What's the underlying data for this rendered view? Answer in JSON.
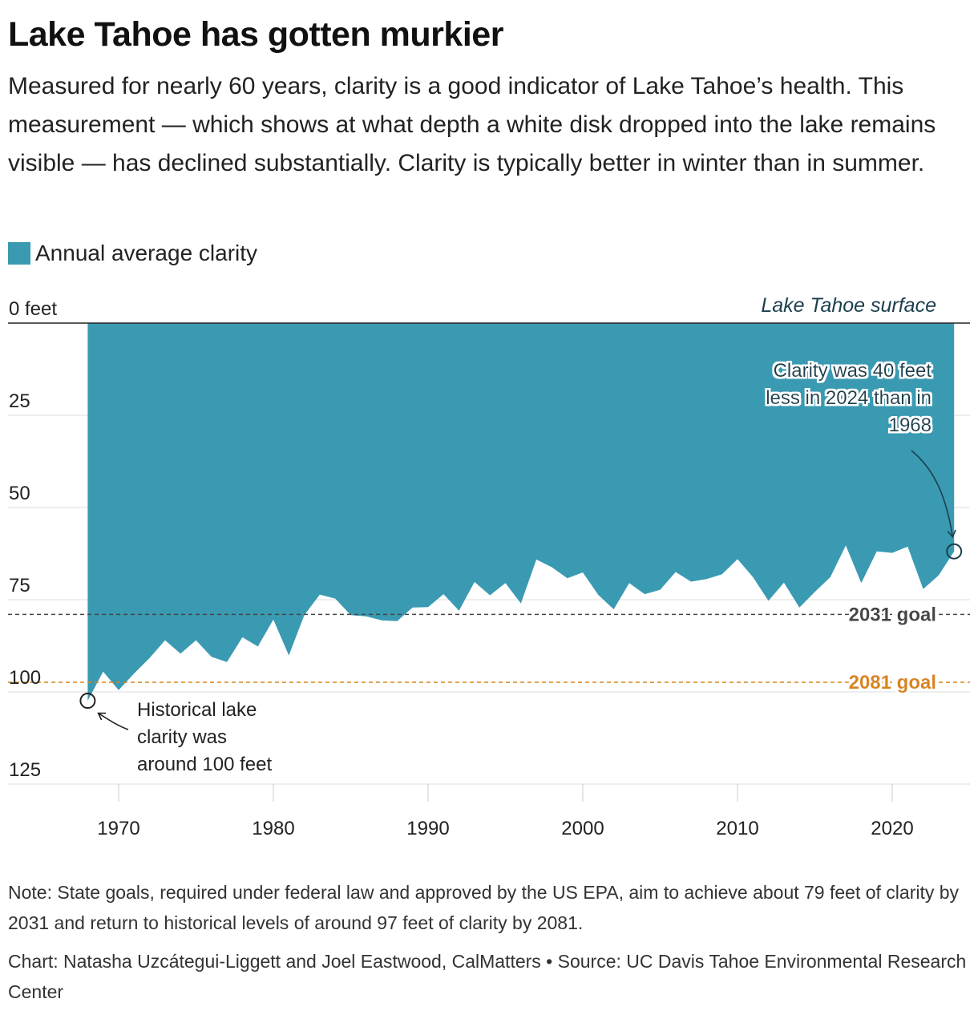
{
  "header": {
    "title": "Lake Tahoe has gotten murkier",
    "subtitle": "Measured for nearly 60 years, clarity is a good indicator of Lake Tahoe’s health. This measurement — which shows at what depth a white disk dropped into the lake remains visible — has declined substantially. Clarity is typically better in winter than in summer."
  },
  "legend": {
    "label": "Annual average clarity",
    "color": "#3a9ab2"
  },
  "chart_data": {
    "type": "area",
    "title": "Lake Tahoe has gotten murkier",
    "ylabel_top": "0 feet",
    "surface_label": "Lake Tahoe surface",
    "y_inverted": true,
    "ylim": [
      0,
      125
    ],
    "yticks": [
      0,
      25,
      50,
      75,
      100,
      125
    ],
    "ytick_labels": [
      "0 feet",
      "25",
      "50",
      "75",
      "100",
      "125"
    ],
    "xlim": [
      1963,
      2030
    ],
    "xticks": [
      1970,
      1980,
      1990,
      2000,
      2010,
      2020
    ],
    "grid": true,
    "legend_position": "top-left",
    "series": [
      {
        "name": "Annual average clarity",
        "color": "#3a9ab2",
        "x": [
          1968,
          1969,
          1970,
          1971,
          1972,
          1973,
          1974,
          1975,
          1976,
          1977,
          1978,
          1979,
          1980,
          1981,
          1982,
          1983,
          1984,
          1985,
          1986,
          1987,
          1988,
          1989,
          1990,
          1991,
          1992,
          1993,
          1994,
          1995,
          1996,
          1997,
          1998,
          1999,
          2000,
          2001,
          2002,
          2003,
          2004,
          2005,
          2006,
          2007,
          2008,
          2009,
          2010,
          2011,
          2012,
          2013,
          2014,
          2015,
          2016,
          2017,
          2018,
          2019,
          2020,
          2021,
          2022,
          2023,
          2024
        ],
        "y": [
          102.4,
          94.5,
          99.5,
          95.0,
          90.8,
          86.0,
          89.6,
          86.0,
          90.5,
          91.9,
          85.2,
          87.7,
          80.4,
          90.1,
          79.2,
          73.6,
          74.7,
          79.2,
          79.5,
          80.6,
          80.8,
          77.1,
          77.0,
          73.5,
          78.0,
          70.2,
          73.8,
          70.5,
          76.0,
          64.1,
          66.2,
          69.2,
          67.6,
          73.7,
          77.6,
          70.5,
          73.5,
          72.3,
          67.5,
          70.1,
          69.4,
          68.1,
          64.0,
          68.9,
          75.3,
          70.4,
          77.1,
          72.9,
          68.9,
          60.3,
          70.5,
          61.9,
          62.3,
          60.6,
          72.1,
          68.4,
          61.9
        ]
      }
    ],
    "reference_lines": [
      {
        "label": "2031 goal",
        "value": 79,
        "color": "#444444"
      },
      {
        "label": "2081 goal",
        "value": 97.4,
        "color": "#d9841a"
      }
    ],
    "annotations": [
      {
        "text_lines": [
          "Clarity was 40 feet",
          "less in 2024 than in",
          "1968"
        ],
        "x": 2024,
        "y": 61.9
      },
      {
        "text_lines": [
          "Historical lake",
          "clarity was",
          "around 100 feet"
        ],
        "x": 1968,
        "y": 102.4
      }
    ]
  },
  "footer": {
    "note": "Note: State goals, required under federal law and approved by the US EPA, aim to achieve about 79 feet of clarity by 2031 and return to historical levels of around 97 feet of clarity by 2081.",
    "credit": "Chart: Natasha Uzcátegui-Liggett and Joel Eastwood, CalMatters • Source: UC Davis Tahoe Environmental Research Center"
  }
}
